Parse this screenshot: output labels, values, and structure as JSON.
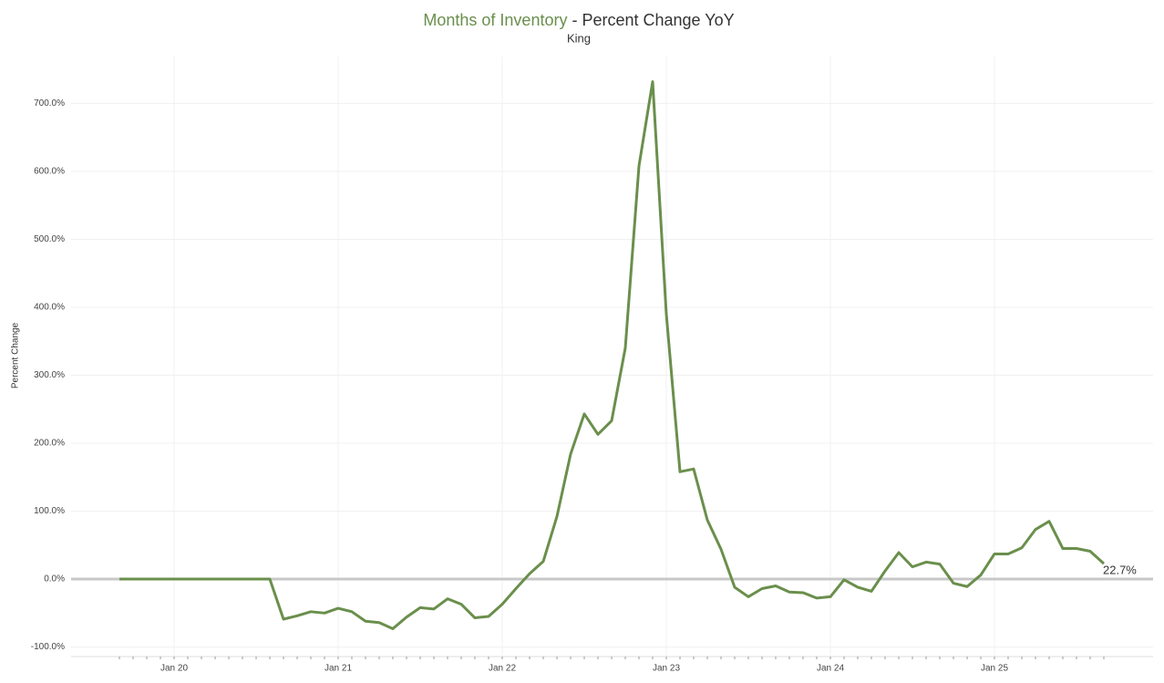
{
  "chart_data": {
    "type": "line",
    "title": "Months of Inventory",
    "title_suffix": "- Percent Change YoY",
    "subtitle": "King",
    "y_label": "Percent Change",
    "categories": [
      null,
      null,
      null,
      null,
      "Jan 20",
      null,
      null,
      null,
      null,
      null,
      null,
      null,
      null,
      null,
      null,
      null,
      "Jan 21",
      null,
      null,
      null,
      null,
      null,
      null,
      null,
      null,
      null,
      null,
      null,
      "Jan 22",
      null,
      null,
      null,
      null,
      null,
      null,
      null,
      null,
      null,
      null,
      null,
      "Jan 23",
      null,
      null,
      null,
      null,
      null,
      null,
      null,
      null,
      null,
      null,
      null,
      "Jan 24",
      null,
      null,
      null,
      null,
      null,
      null,
      null,
      null,
      null,
      null,
      null,
      "Jan 25",
      null,
      null,
      null,
      null,
      null,
      null,
      null,
      null
    ],
    "series": [
      {
        "name": "Percent Change",
        "color": "#6a8f4c",
        "values": [
          0,
          0,
          0,
          0,
          0,
          0,
          0,
          0,
          0,
          0,
          0,
          0,
          -59,
          -54,
          -48,
          -50,
          -43,
          -48,
          -62,
          -64,
          -73,
          -56,
          -42,
          -44,
          -29,
          -37,
          -57,
          -55,
          -37,
          -14,
          8,
          26,
          92,
          184,
          243,
          213,
          233,
          340,
          608,
          732,
          390,
          158,
          162,
          87,
          44,
          -12,
          -26,
          -14,
          -10,
          -19,
          -20,
          -28,
          -26,
          -1,
          -12,
          -18,
          12,
          39,
          18,
          25,
          22,
          -6,
          -11,
          6,
          37,
          37,
          46,
          73,
          85,
          45,
          45,
          41,
          22.7
        ],
        "value_labels": [
          null,
          null,
          null,
          null,
          null,
          null,
          null,
          null,
          null,
          null,
          null,
          null,
          null,
          null,
          null,
          null,
          null,
          null,
          null,
          null,
          null,
          null,
          null,
          null,
          null,
          null,
          null,
          null,
          null,
          null,
          null,
          null,
          null,
          null,
          null,
          null,
          null,
          null,
          null,
          null,
          null,
          null,
          null,
          null,
          null,
          null,
          null,
          null,
          null,
          null,
          null,
          null,
          null,
          null,
          null,
          null,
          null,
          null,
          null,
          null,
          null,
          null,
          null,
          null,
          null,
          null,
          null,
          null,
          null,
          null,
          null,
          null,
          "22.7%"
        ]
      }
    ],
    "ylim": [
      -114,
      769
    ],
    "yticks": [
      {
        "value": -100,
        "label": "-100.0%"
      },
      {
        "value": 0,
        "label": "0.0%"
      },
      {
        "value": 100,
        "label": "100.0%"
      },
      {
        "value": 200,
        "label": "200.0%"
      },
      {
        "value": 300,
        "label": "300.0%"
      },
      {
        "value": 400,
        "label": "400.0%"
      },
      {
        "value": 500,
        "label": "500.0%"
      },
      {
        "value": 600,
        "label": "600.0%"
      },
      {
        "value": 700,
        "label": "700.0%"
      }
    ],
    "grid": true
  }
}
